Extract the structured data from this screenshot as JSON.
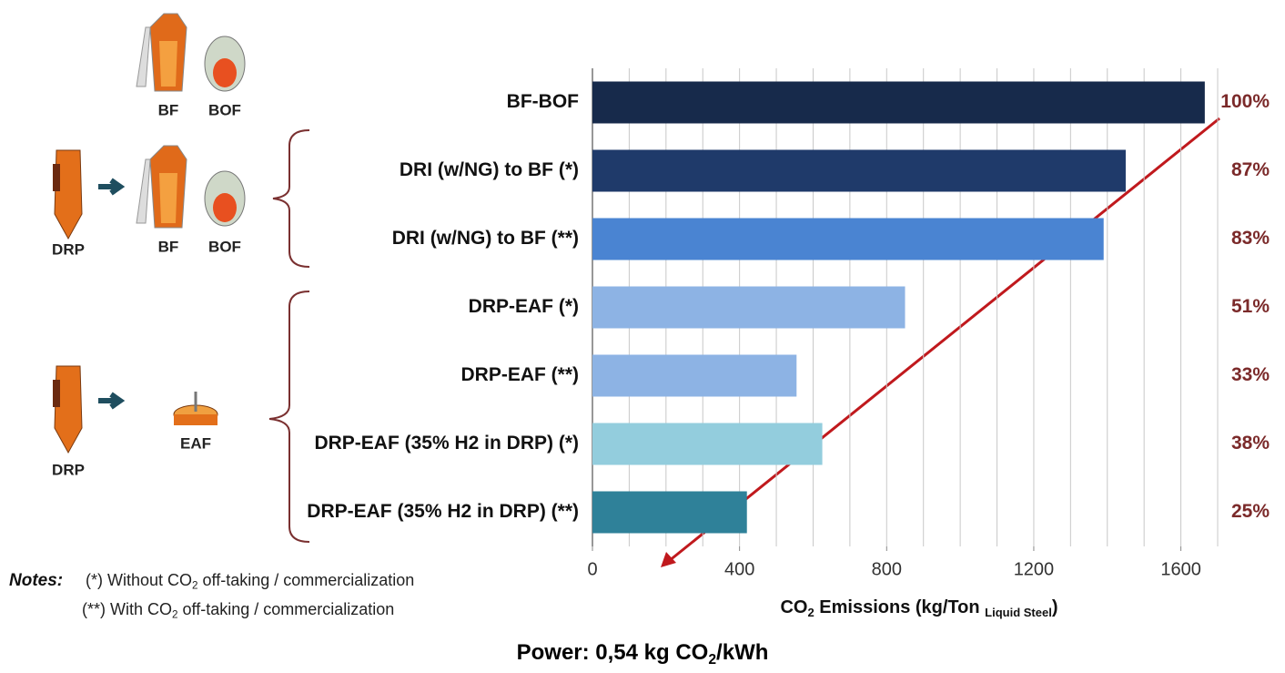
{
  "chart_data": {
    "type": "bar",
    "orientation": "horizontal",
    "categories": [
      "BF-BOF",
      "DRI (w/NG) to BF (*)",
      "DRI (w/NG) to BF (**)",
      "DRP-EAF (*)",
      "DRP-EAF (**)",
      "DRP-EAF (35% H2 in DRP) (*)",
      "DRP-EAF (35% H2 in DRP) (**)"
    ],
    "values": [
      1665,
      1450,
      1390,
      850,
      555,
      625,
      420
    ],
    "colors": [
      "#172a4b",
      "#1f3a6a",
      "#4a84d2",
      "#8db3e4",
      "#8db3e4",
      "#93cddd",
      "#2f8199"
    ],
    "shares": {
      "values": [
        100,
        87,
        83,
        51,
        33,
        38,
        25
      ],
      "value_labels": [
        "100%",
        "87%",
        "83%",
        "51%",
        "33%",
        "38%",
        "25%"
      ],
      "color": "#7b2a2a"
    },
    "xlim": [
      0,
      1700
    ],
    "xticks": [
      0,
      400,
      800,
      1200,
      1600
    ],
    "xgrid": [
      100,
      200,
      300,
      400,
      500,
      600,
      700,
      800,
      900,
      1000,
      1100,
      1200,
      1300,
      1400,
      1500,
      1600,
      1700
    ],
    "xlabel": [
      "CO",
      "2",
      " Emissions (kg/Ton ",
      "Liquid Steel",
      ")"
    ],
    "footer": [
      "Power: 0,54 kg CO",
      "2",
      "/kWh"
    ],
    "notes": {
      "heading": "Notes:",
      "lines": [
        [
          "(*)  Without CO",
          "2",
          " off-taking / commercialization"
        ],
        [
          "(**) With CO",
          "2",
          " off-taking / commercialization"
        ]
      ]
    },
    "process_labels": [
      "BF",
      "BOF",
      "DRP",
      "BF",
      "BOF",
      "DRP",
      "EAF"
    ]
  }
}
